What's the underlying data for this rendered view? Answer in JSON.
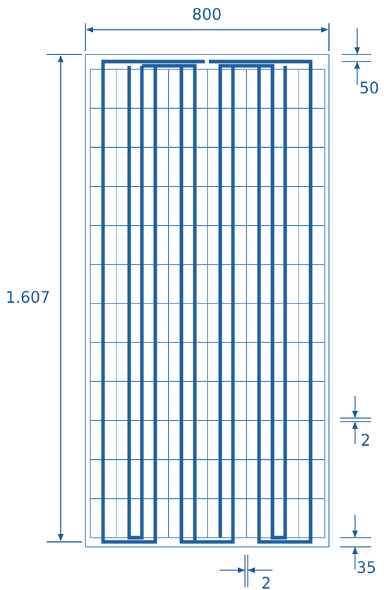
{
  "dimensions": {
    "width": "800",
    "height": "1.607",
    "top_margin": "50",
    "cell_gap_vertical": "2",
    "bottom_margin": "35",
    "cell_gap_horizontal": "2"
  },
  "colors": {
    "line": "#1a5a96",
    "frame": "#5d8fc0",
    "thick": "#1f5f9f"
  }
}
